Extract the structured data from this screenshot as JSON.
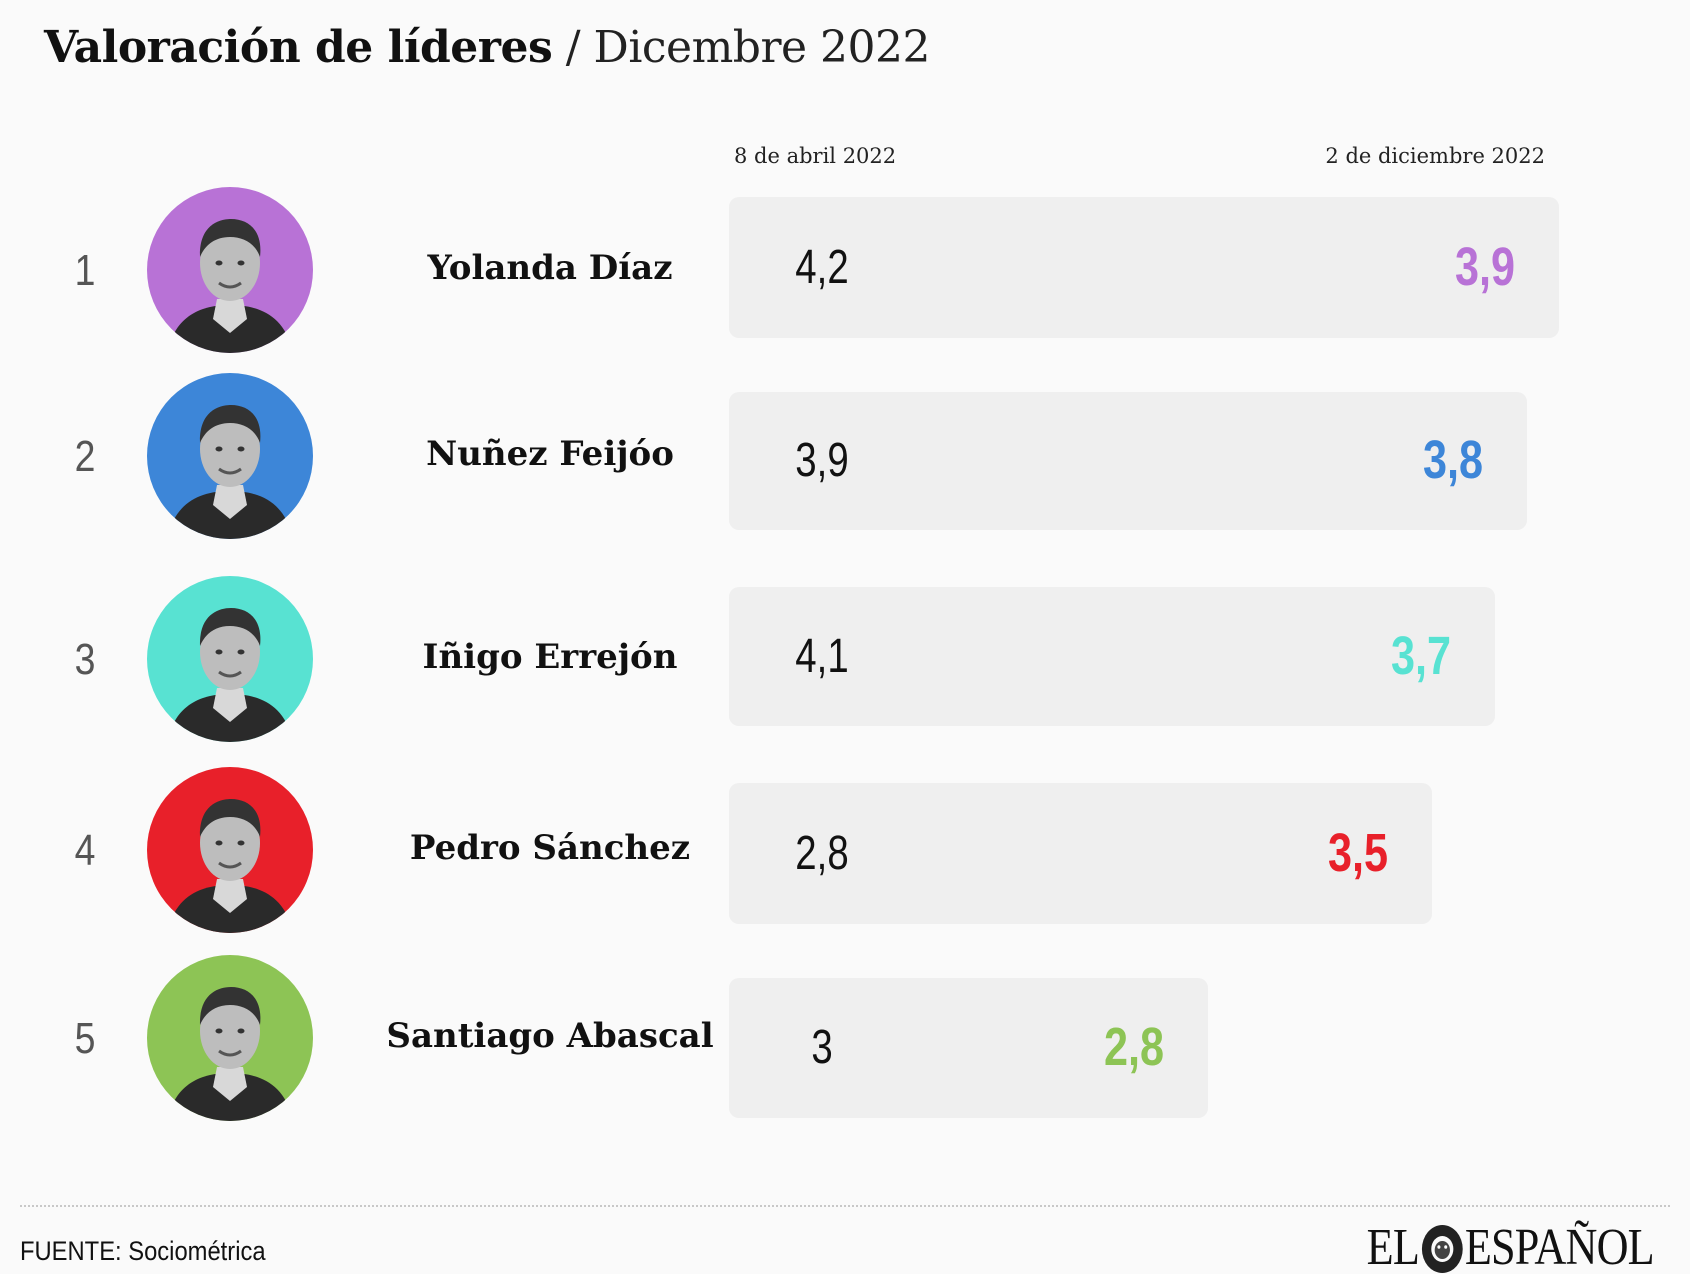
{
  "chart_data": {
    "type": "bar",
    "title": "Valoración de líderes",
    "subtitle": "Dicembre 2022",
    "series_labels": [
      "8 de abril 2022",
      "2 de diciembre 2022"
    ],
    "rows": [
      {
        "rank": "1",
        "name": "Yolanda Díaz",
        "apr": "4,2",
        "dec": "3,9",
        "dec_value": 3.9,
        "color": "#b872d6"
      },
      {
        "rank": "2",
        "name": "Nuñez Feijóo",
        "apr": "3,9",
        "dec": "3,8",
        "dec_value": 3.8,
        "color": "#3d86d8"
      },
      {
        "rank": "3",
        "name": "Iñigo Errejón",
        "apr": "4,1",
        "dec": "3,7",
        "dec_value": 3.7,
        "color": "#58e2d2"
      },
      {
        "rank": "4",
        "name": "Pedro Sánchez",
        "apr": "2,8",
        "dec": "3,5",
        "dec_value": 3.5,
        "color": "#e8202a"
      },
      {
        "rank": "5",
        "name": "Santiago Abascal",
        "apr": "3",
        "dec": "2,8",
        "dec_value": 2.8,
        "color": "#8dc455"
      }
    ]
  },
  "footer": {
    "source": "FUENTE: Sociométrica",
    "logo": "EL ESPAÑOL",
    "logo_icon": "lion-icon"
  }
}
